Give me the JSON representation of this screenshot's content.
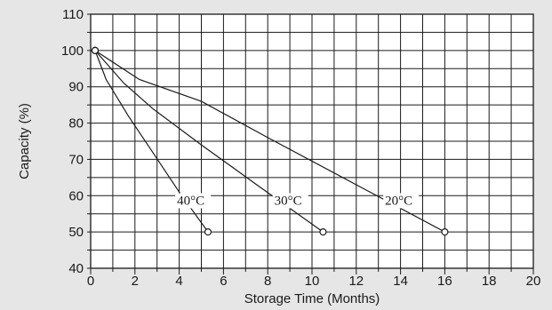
{
  "chart_data": {
    "type": "line",
    "xlabel": "Storage Time (Months)",
    "ylabel": "Capacity (%)",
    "xlim": [
      0,
      20
    ],
    "ylim": [
      40,
      110
    ],
    "x_ticks": [
      "0",
      "2",
      "4",
      "6",
      "8",
      "10",
      "12",
      "14",
      "16",
      "18",
      "20"
    ],
    "y_ticks": [
      "40",
      "50",
      "60",
      "70",
      "80",
      "90",
      "100",
      "110"
    ],
    "grid": true,
    "colors": {
      "background": "#e6e6e6",
      "plot": "#ffffff",
      "line": "#1a1a1a"
    },
    "series": [
      {
        "name": "40°C",
        "label_at": [
          3.9,
          57.5
        ],
        "points": [
          [
            0.2,
            100
          ],
          [
            0.7,
            92
          ],
          [
            1.7,
            82
          ],
          [
            2.8,
            72
          ],
          [
            4,
            61
          ],
          [
            5.3,
            50
          ]
        ]
      },
      {
        "name": "30°C",
        "label_at": [
          8.3,
          57.5
        ],
        "points": [
          [
            0.2,
            100
          ],
          [
            1.5,
            91
          ],
          [
            2.8,
            84
          ],
          [
            5,
            74
          ],
          [
            7.5,
            63
          ],
          [
            10.5,
            50
          ]
        ]
      },
      {
        "name": "20°C",
        "label_at": [
          13.3,
          57.5
        ],
        "points": [
          [
            0.2,
            100
          ],
          [
            2.2,
            92
          ],
          [
            5,
            86
          ],
          [
            8,
            76
          ],
          [
            12,
            63
          ],
          [
            16,
            50
          ]
        ]
      }
    ]
  }
}
